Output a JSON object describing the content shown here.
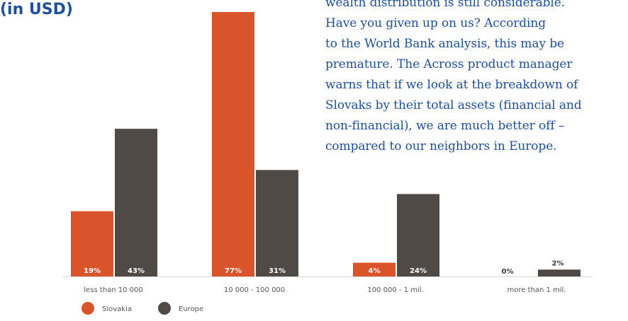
{
  "heading": {
    "text": "(in USD)"
  },
  "article": {
    "lines": [
      "wealth distribution is still considerable.",
      "Have you given up on us? According",
      "to the World Bank analysis, this may be",
      "premature. The Across product manager",
      "warns that if we look at the breakdown of",
      "Slovaks by their total assets (financial and",
      "non-financial), we are much better off –",
      "compared to our neighbors in Europe."
    ]
  },
  "colors": {
    "heading": "#1f4f9a",
    "article": "#1f4f9a",
    "slovakia": "#d9532b",
    "europe": "#4f4a45",
    "axis": "#d6d6d6",
    "category_text": "#555555"
  },
  "chart_data": {
    "type": "bar",
    "title": "",
    "xlabel": "",
    "ylabel": "",
    "ylim": [
      0,
      77
    ],
    "grid": false,
    "legend_placement": "bottom-left",
    "categories": [
      "less than 10 000",
      "10 000 - 100 000",
      "100 000 - 1 mil.",
      "more than 1 mil."
    ],
    "series": [
      {
        "name": "Slovakia",
        "color": "#d9532b",
        "values": [
          19,
          77,
          4,
          0
        ],
        "labels": [
          "19%",
          "77%",
          "4%",
          "0%"
        ]
      },
      {
        "name": "Europe",
        "color": "#4f4a45",
        "values": [
          43,
          31,
          24,
          2
        ],
        "labels": [
          "43%",
          "31%",
          "24%",
          "2%"
        ]
      }
    ]
  }
}
